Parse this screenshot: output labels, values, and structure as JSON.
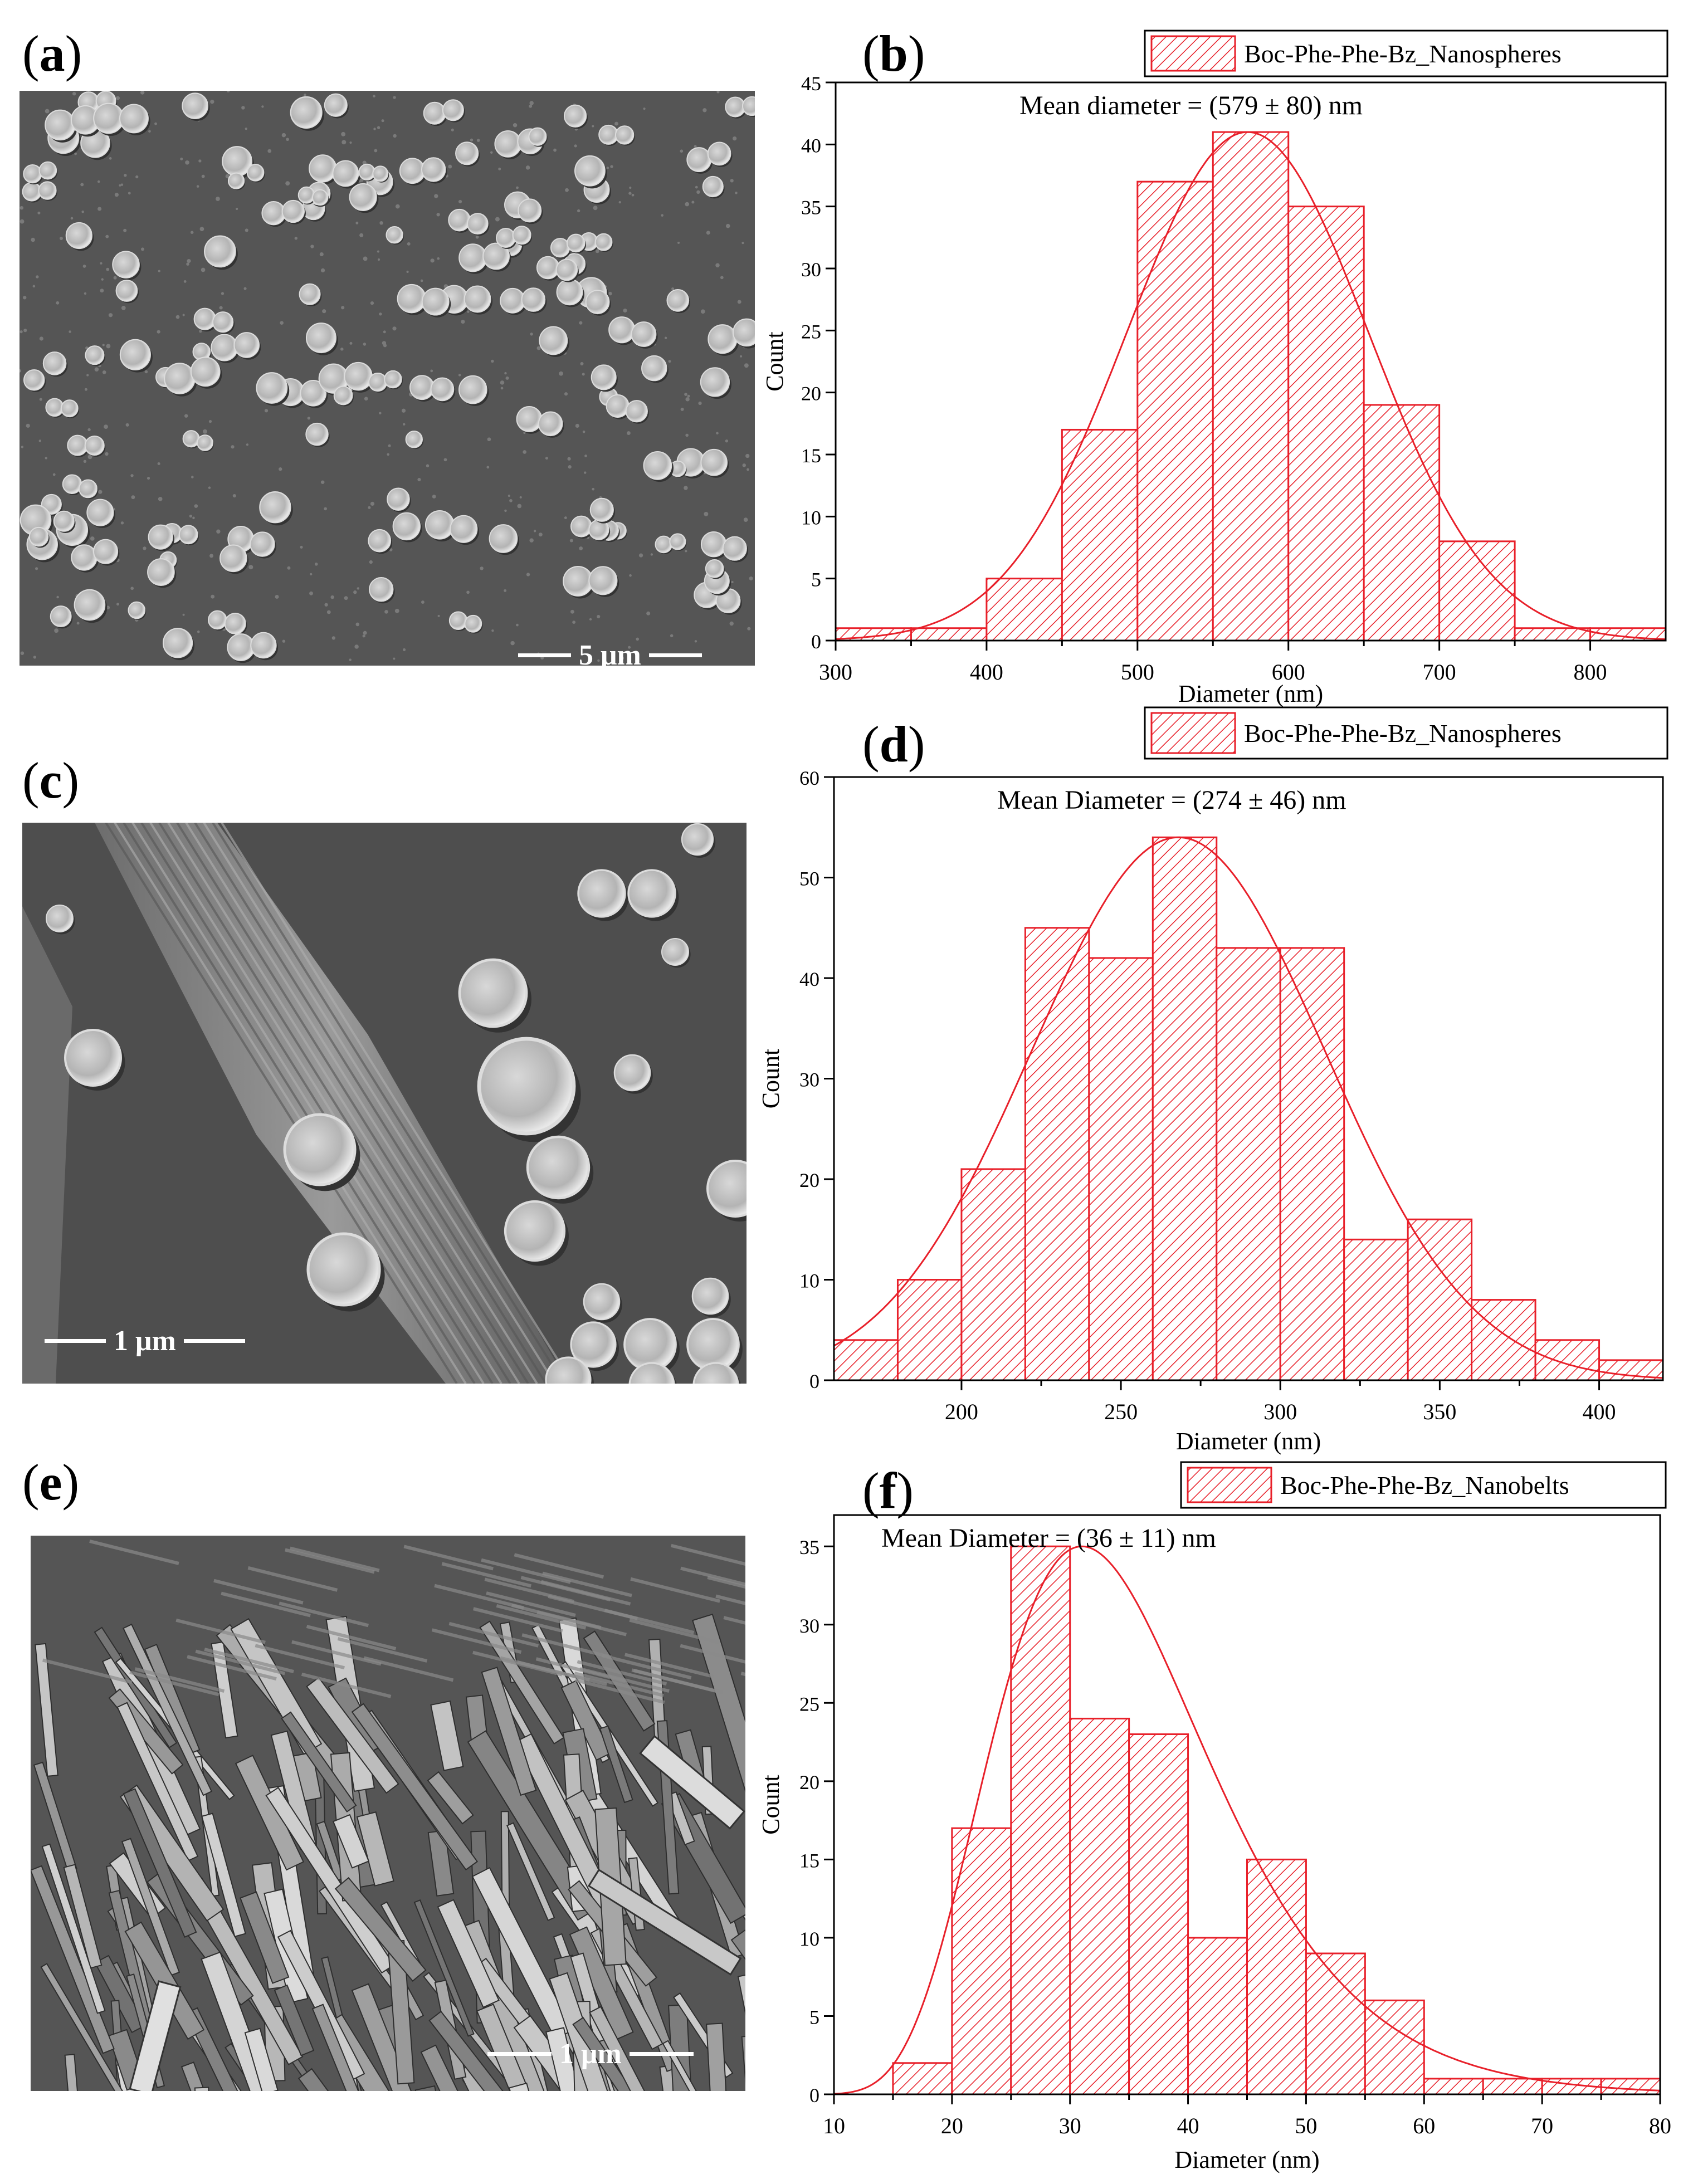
{
  "panels": {
    "a": {
      "letter": "a"
    },
    "b": {
      "letter": "b"
    },
    "c": {
      "letter": "c"
    },
    "d": {
      "letter": "d"
    },
    "e": {
      "letter": "e"
    },
    "f": {
      "letter": "f"
    }
  },
  "sem": {
    "a": {
      "scale_label": "5 μm"
    },
    "c": {
      "scale_label": "1 μm"
    },
    "e": {
      "scale_label": "1 μm"
    }
  },
  "colors": {
    "bar": "#e8202a",
    "text": "#000000"
  },
  "chart_data": [
    {
      "id": "b",
      "type": "bar",
      "annotation": "Mean diameter = (579 ± 80) nm",
      "legend": "Boc-Phe-Phe-Bz_Nanospheres",
      "legend_position": "top-right",
      "xlabel": "Diameter (nm)",
      "ylabel": "Count",
      "xlim": [
        300,
        850
      ],
      "ylim": [
        0,
        45
      ],
      "xticks": [
        300,
        400,
        500,
        600,
        700,
        800
      ],
      "yticks": [
        0,
        5,
        10,
        15,
        20,
        25,
        30,
        35,
        40,
        45
      ],
      "bin_edges": [
        300,
        350,
        400,
        450,
        500,
        550,
        600,
        650,
        700,
        750,
        800,
        850
      ],
      "values": [
        1,
        1,
        5,
        17,
        37,
        41,
        35,
        19,
        8,
        1,
        1
      ],
      "fit": {
        "type": "gaussian",
        "mean": 573,
        "sigma": 80,
        "peak": 41
      }
    },
    {
      "id": "d",
      "type": "bar",
      "annotation": "Mean Diameter = (274 ± 46) nm",
      "legend": "Boc-Phe-Phe-Bz_Nanospheres",
      "legend_position": "top-right",
      "xlabel": "Diameter (nm)",
      "ylabel": "Count",
      "xlim": [
        160,
        420
      ],
      "ylim": [
        0,
        60
      ],
      "xticks": [
        200,
        250,
        300,
        350,
        400
      ],
      "yticks": [
        0,
        10,
        20,
        30,
        40,
        50,
        60
      ],
      "bin_edges": [
        160,
        180,
        200,
        220,
        240,
        260,
        280,
        300,
        320,
        340,
        360,
        380,
        400,
        420
      ],
      "values": [
        4,
        10,
        21,
        45,
        42,
        54,
        43,
        43,
        14,
        16,
        8,
        4,
        2
      ],
      "fit": {
        "type": "gaussian",
        "mean": 268,
        "sigma": 46,
        "peak": 54
      }
    },
    {
      "id": "f",
      "type": "bar",
      "annotation": "Mean Diameter = (36 ± 11) nm",
      "legend": "Boc-Phe-Phe-Bz_Nanobelts",
      "legend_position": "top-right",
      "xlabel": "Diameter (nm)",
      "ylabel": "Count",
      "xlim": [
        10,
        80
      ],
      "ylim": [
        0,
        37
      ],
      "xticks": [
        10,
        20,
        30,
        40,
        50,
        60,
        70,
        80
      ],
      "yticks": [
        0,
        5,
        10,
        15,
        20,
        25,
        30,
        35
      ],
      "bin_edges": [
        15,
        20,
        25,
        30,
        35,
        40,
        45,
        50,
        55,
        60,
        65,
        70,
        75,
        80
      ],
      "values": [
        2,
        17,
        35,
        24,
        23,
        10,
        15,
        9,
        6,
        1,
        1,
        1,
        1
      ],
      "fit": {
        "type": "lognormal",
        "mode": 31,
        "peak": 35,
        "sigma_log": 0.3
      }
    }
  ]
}
